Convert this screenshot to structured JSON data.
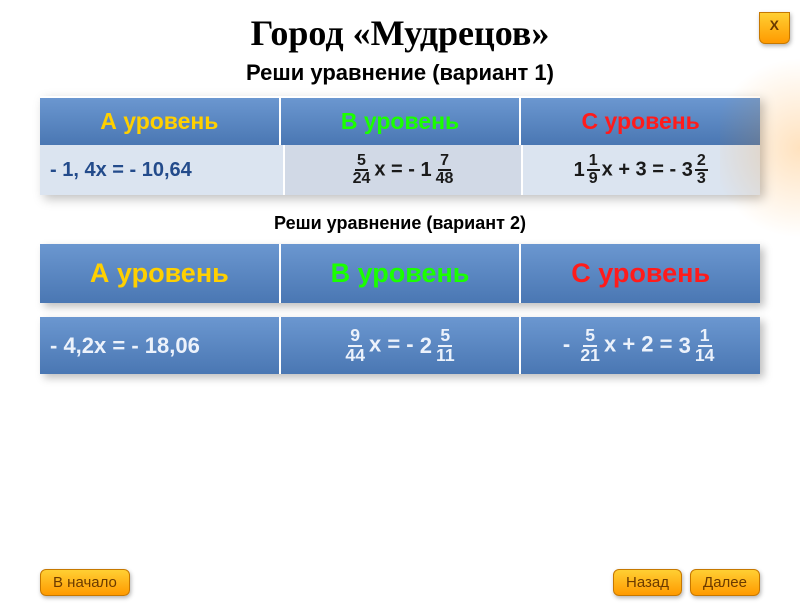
{
  "colors": {
    "header_bg_top": "#6b97d0",
    "header_bg_bottom": "#4a77b3",
    "level_a_text": "#ffd000",
    "level_b_text": "#1bff00",
    "level_c_text": "#ff1b1b",
    "data_bg_light": "#dbe4f0",
    "data_bg_mid": "#d1d9e6",
    "data_text_blue": "#234b8b",
    "button_top": "#ffcf33",
    "button_bottom": "#ff9a00",
    "button_border": "#c67800",
    "button_text": "#6b3a00"
  },
  "title": "Город «Мудрецов»",
  "variant1": {
    "subtitle": "Реши уравнение    (вариант 1)",
    "headers": {
      "a": "А  уровень",
      "b": "В  уровень",
      "c": "С  уровень"
    },
    "eq_a": "- 1, 4х = - 10,64",
    "eq_b": {
      "lhs_num": "5",
      "lhs_den": "24",
      "var": "х",
      "eq": " = - ",
      "rhs_whole": "1",
      "rhs_num": "7",
      "rhs_den": "48"
    },
    "eq_c": {
      "lhs_whole": "1",
      "lhs_num": "1",
      "lhs_den": "9",
      "var": "х",
      "mid": " + 3 = - ",
      "rhs_whole": "3",
      "rhs_num": "2",
      "rhs_den": "3"
    }
  },
  "variant2": {
    "subtitle": "Реши уравнение    (вариант 2)",
    "headers": {
      "a": "А  уровень",
      "b": "В  уровень",
      "c": "С  уровень"
    },
    "eq_a": "- 4,2х = - 18,06",
    "eq_b": {
      "lhs_num": "9",
      "lhs_den": "44",
      "var": "х",
      "eq": " = - ",
      "rhs_whole": "2",
      "rhs_num": "5",
      "rhs_den": "11"
    },
    "eq_c": {
      "pre": "- ",
      "lhs_num": "5",
      "lhs_den": "21",
      "var": "х",
      "mid": " + 2 = ",
      "rhs_whole": "3",
      "rhs_num": "1",
      "rhs_den": "14"
    }
  },
  "buttons": {
    "start": "В начало",
    "back": "Назад",
    "next": "Далее",
    "close": "X"
  }
}
